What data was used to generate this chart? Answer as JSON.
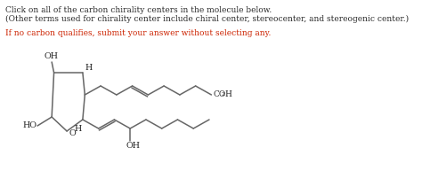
{
  "title_line1": "Click on all of the carbon chirality centers in the molecule below.",
  "title_line2": "(Other terms used for chirality center include chiral center, stereocenter, and stereogenic center.)",
  "red_line": "If no carbon qualifies, submit your answer without selecting any.",
  "bg_color": "#ffffff",
  "text_color": "#2b2b2b",
  "red_color": "#cc2200",
  "mol_color": "#666666",
  "label_color": "#222222",
  "font_size_text": 6.5,
  "font_size_label": 6.8,
  "lw": 1.1
}
